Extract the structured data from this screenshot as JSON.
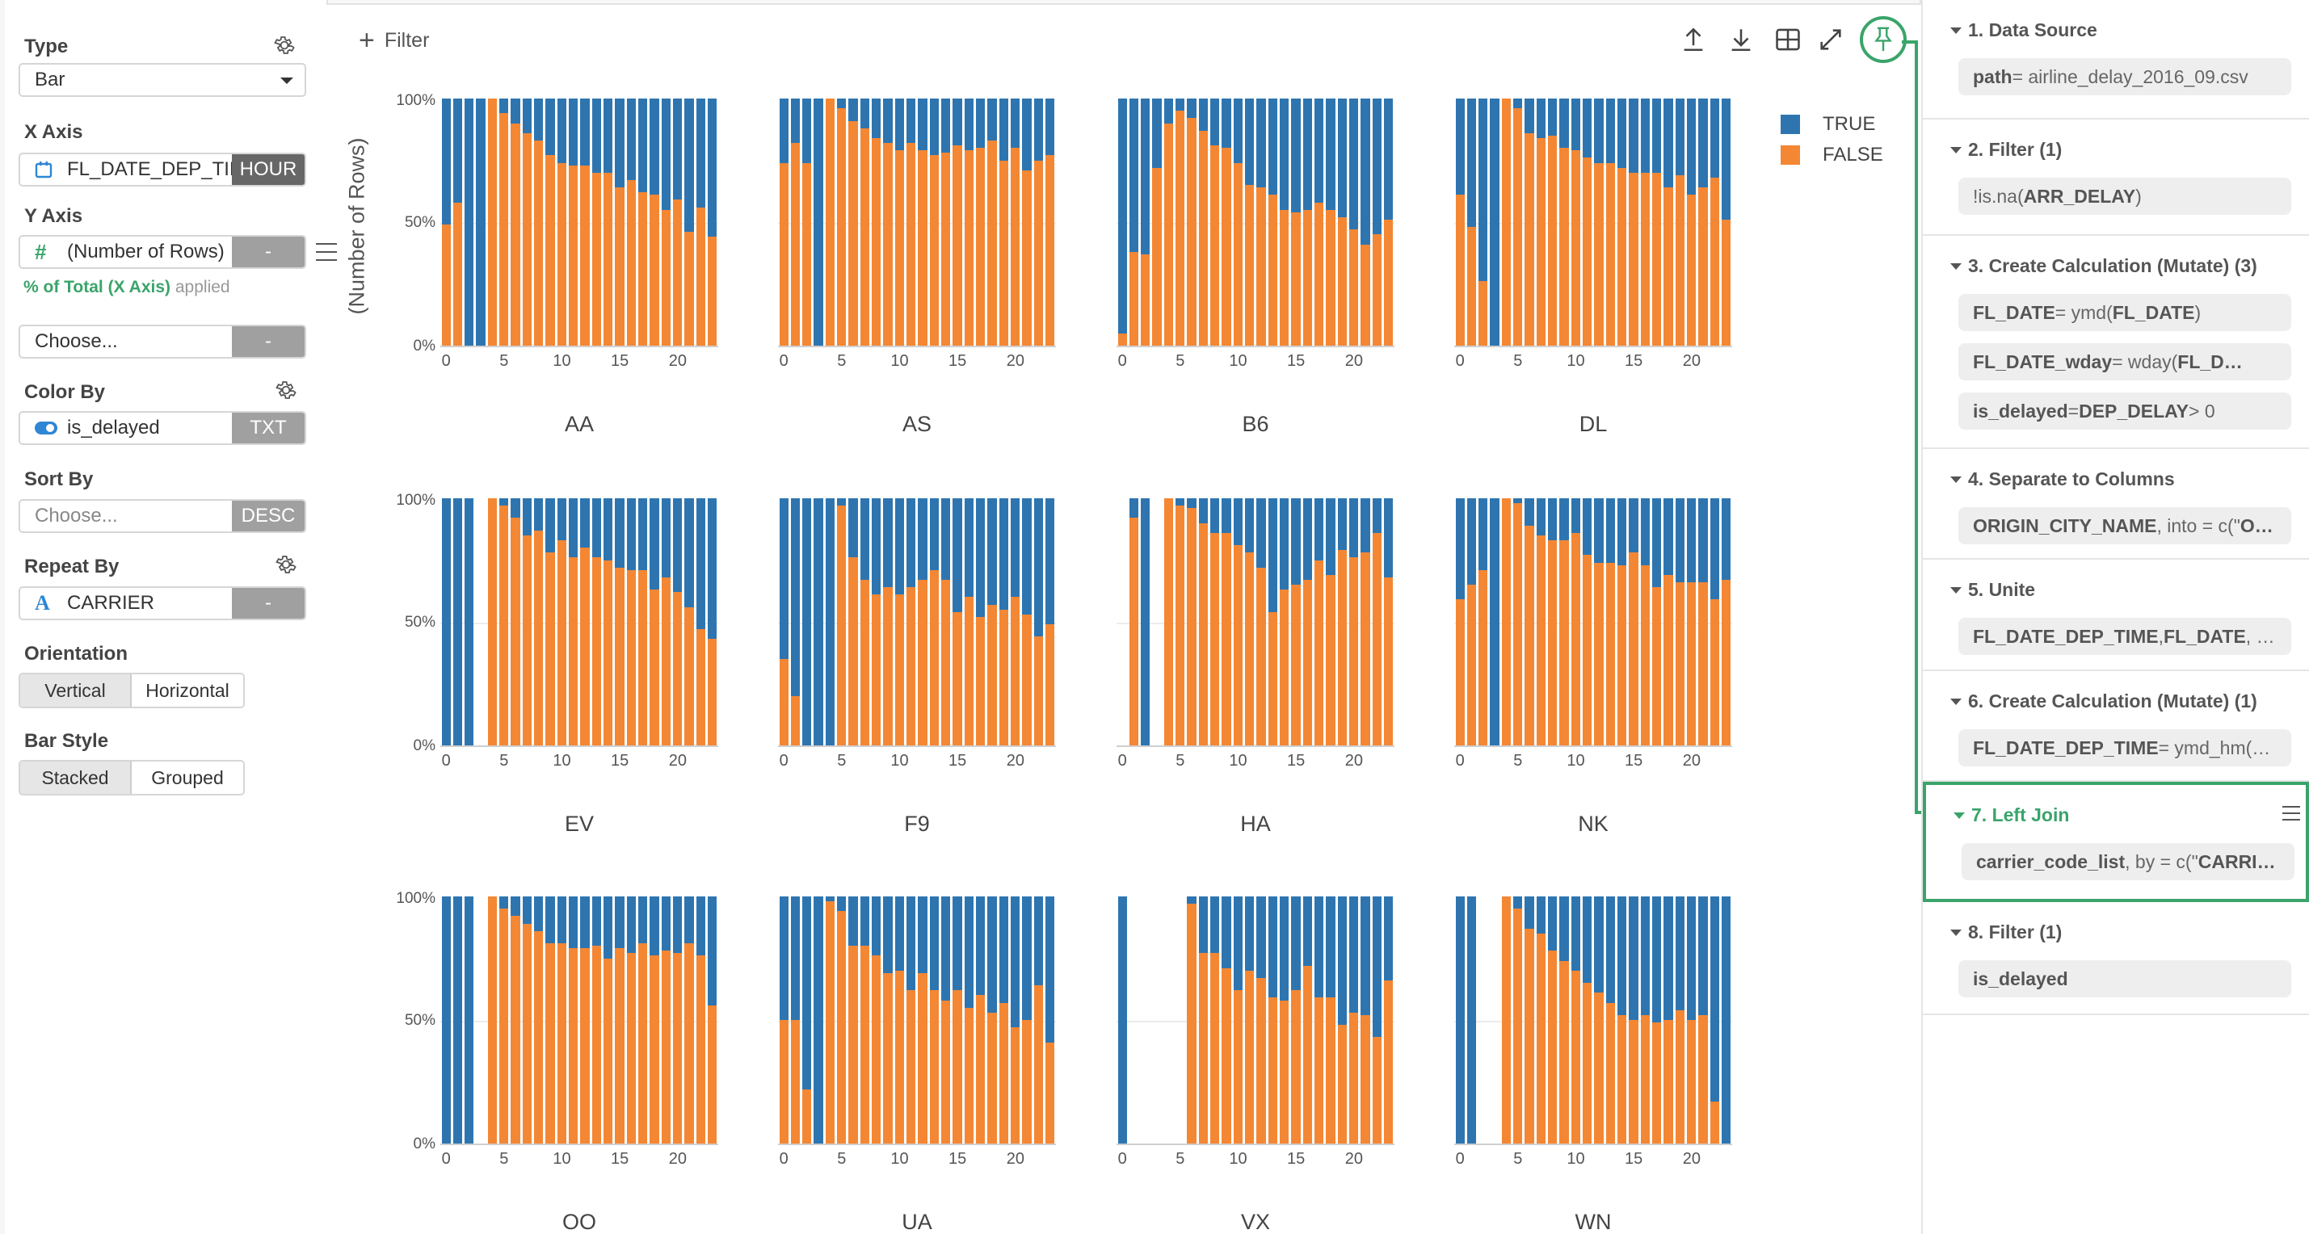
{
  "left_panel": {
    "type": {
      "label": "Type",
      "value": "Bar"
    },
    "x_axis": {
      "label": "X Axis",
      "column": "FL_DATE_DEP_TIM",
      "unit": "HOUR"
    },
    "y_axis": {
      "label": "Y Axis",
      "column": "(Number of Rows)",
      "button": "-",
      "hint_green": "% of Total (X Axis)",
      "hint_gray": "applied"
    },
    "y_axis_2": {
      "placeholder": "Choose...",
      "button": "-"
    },
    "color_by": {
      "label": "Color By",
      "column": "is_delayed",
      "type": "TXT"
    },
    "sort_by": {
      "label": "Sort By",
      "placeholder": "Choose...",
      "order": "DESC"
    },
    "repeat_by": {
      "label": "Repeat By",
      "column": "CARRIER",
      "button": "-"
    },
    "orientation": {
      "label": "Orientation",
      "options": [
        "Vertical",
        "Horizontal"
      ],
      "selected": "Vertical"
    },
    "bar_style": {
      "label": "Bar Style",
      "options": [
        "Stacked",
        "Grouped"
      ],
      "selected": "Stacked"
    }
  },
  "chart_area": {
    "filter_label": "Filter",
    "toolbar": [
      "upload-icon",
      "download-icon",
      "grid-layout-icon",
      "expand-icon",
      "pin-icon"
    ],
    "y_axis_title": "(Number of Rows)",
    "legend": [
      {
        "label": "TRUE",
        "color": "#2e75b0"
      },
      {
        "label": "FALSE",
        "color": "#f48734"
      }
    ]
  },
  "chart_data": {
    "type": "bar",
    "stacked": true,
    "normalized": "percent of total per x",
    "title": "",
    "xlabel": "FL_DATE_DEP_TIME (HOUR)",
    "ylabel": "(Number of Rows)",
    "ylim": [
      0,
      100
    ],
    "yticks": [
      "0%",
      "50%",
      "100%"
    ],
    "xticks": [
      0,
      5,
      10,
      15,
      20
    ],
    "x": [
      0,
      1,
      2,
      3,
      4,
      5,
      6,
      7,
      8,
      9,
      10,
      11,
      12,
      13,
      14,
      15,
      16,
      17,
      18,
      19,
      20,
      21,
      22,
      23
    ],
    "legend": [
      "TRUE",
      "FALSE"
    ],
    "colors": {
      "TRUE": "#2e75b0",
      "FALSE": "#f48734"
    },
    "facet_by": "CARRIER",
    "note": "values are FALSE share (%); TRUE share = 100 - FALSE; null = no data for that hour",
    "facets": [
      {
        "carrier": "AA",
        "false_pct": [
          49,
          58,
          0,
          0,
          100,
          94,
          90,
          86,
          83,
          77,
          74,
          73,
          73,
          70,
          70,
          64,
          67,
          62,
          61,
          55,
          59,
          46,
          56,
          44
        ]
      },
      {
        "carrier": "AS",
        "false_pct": [
          74,
          82,
          74,
          0,
          100,
          96,
          91,
          88,
          84,
          82,
          79,
          82,
          79,
          77,
          78,
          81,
          79,
          80,
          83,
          75,
          80,
          71,
          75,
          77
        ]
      },
      {
        "carrier": "B6",
        "false_pct": [
          5,
          38,
          37,
          72,
          90,
          95,
          92,
          87,
          81,
          80,
          74,
          65,
          64,
          61,
          55,
          54,
          55,
          58,
          55,
          52,
          47,
          41,
          45,
          51
        ]
      },
      {
        "carrier": "DL",
        "false_pct": [
          61,
          48,
          26,
          0,
          100,
          96,
          86,
          84,
          85,
          80,
          79,
          76,
          74,
          74,
          72,
          70,
          70,
          70,
          64,
          69,
          61,
          64,
          68,
          51
        ]
      },
      {
        "carrier": "EV",
        "false_pct": [
          0,
          0,
          0,
          null,
          100,
          97,
          92,
          85,
          87,
          78,
          83,
          76,
          80,
          76,
          75,
          72,
          71,
          71,
          63,
          68,
          62,
          56,
          47,
          43
        ]
      },
      {
        "carrier": "F9",
        "false_pct": [
          35,
          20,
          0,
          0,
          0,
          97,
          76,
          67,
          61,
          64,
          61,
          64,
          67,
          71,
          67,
          54,
          60,
          52,
          57,
          55,
          60,
          53,
          44,
          49
        ]
      },
      {
        "carrier": "HA",
        "false_pct": [
          null,
          92,
          0,
          null,
          100,
          97,
          96,
          90,
          86,
          86,
          81,
          78,
          72,
          54,
          63,
          65,
          67,
          75,
          69,
          79,
          76,
          78,
          86,
          68
        ]
      },
      {
        "carrier": "NK",
        "false_pct": [
          59,
          65,
          71,
          0,
          100,
          98,
          89,
          85,
          83,
          83,
          86,
          77,
          74,
          74,
          73,
          78,
          73,
          64,
          69,
          66,
          66,
          66,
          59,
          67
        ]
      },
      {
        "carrier": "OO",
        "false_pct": [
          0,
          0,
          0,
          null,
          100,
          95,
          92,
          89,
          86,
          81,
          81,
          79,
          79,
          80,
          75,
          79,
          77,
          81,
          76,
          78,
          77,
          81,
          76,
          56
        ]
      },
      {
        "carrier": "UA",
        "false_pct": [
          50,
          50,
          22,
          0,
          98,
          94,
          80,
          80,
          76,
          69,
          70,
          62,
          69,
          62,
          58,
          62,
          55,
          60,
          53,
          57,
          47,
          50,
          64,
          41
        ]
      },
      {
        "carrier": "VX",
        "false_pct": [
          0,
          null,
          null,
          null,
          null,
          null,
          97,
          77,
          77,
          71,
          62,
          70,
          67,
          59,
          58,
          62,
          72,
          59,
          59,
          48,
          53,
          52,
          43,
          66
        ]
      },
      {
        "carrier": "WN",
        "false_pct": [
          0,
          0,
          null,
          null,
          100,
          95,
          87,
          85,
          78,
          74,
          70,
          65,
          61,
          57,
          52,
          50,
          52,
          49,
          50,
          54,
          50,
          52,
          17,
          0
        ]
      }
    ]
  },
  "right_panel": {
    "steps": [
      {
        "title": "1. Data Source",
        "chips": [
          {
            "bold": "path",
            "rest": " = airline_delay_2016_09.csv"
          }
        ]
      },
      {
        "title": "2. Filter (1)",
        "chips": [
          {
            "pre": "!is.na(",
            "bold": "ARR_DELAY",
            "rest": ")"
          }
        ]
      },
      {
        "title": "3. Create Calculation (Mutate) (3)",
        "chips": [
          {
            "bold": "FL_DATE",
            "rest": " = ymd(",
            "bold2": "FL_DATE",
            "rest2": ")"
          },
          {
            "bold": "FL_DATE_wday",
            "rest": " = wday(",
            "bold2": "FL_D…",
            "rest2": ""
          },
          {
            "bold": "is_delayed",
            "rest": " = ",
            "bold2": "DEP_DELAY",
            "rest2": " > 0"
          }
        ]
      },
      {
        "title": "4. Separate to Columns",
        "chips": [
          {
            "bold": "ORIGIN_CITY_NAME",
            "rest": ", into = c(\"",
            "bold2": "O…",
            "rest2": ""
          }
        ]
      },
      {
        "title": "5. Unite",
        "chips": [
          {
            "bold": "FL_DATE_DEP_TIME",
            "rest": ", ",
            "bold2": "FL_DATE",
            "rest2": ", …"
          }
        ]
      },
      {
        "title": "6. Create Calculation (Mutate) (1)",
        "chips": [
          {
            "bold": "FL_DATE_DEP_TIME",
            "rest": " = ymd_hm(…"
          }
        ]
      },
      {
        "title": "7. Left Join",
        "active": true,
        "chips": [
          {
            "bold": "carrier_code_list",
            "rest": ", by = c(\"",
            "bold2": "CARRI…",
            "rest2": ""
          }
        ]
      },
      {
        "title": "8. Filter (1)",
        "chips": [
          {
            "bold": "is_delayed",
            "rest": ""
          }
        ]
      }
    ]
  }
}
